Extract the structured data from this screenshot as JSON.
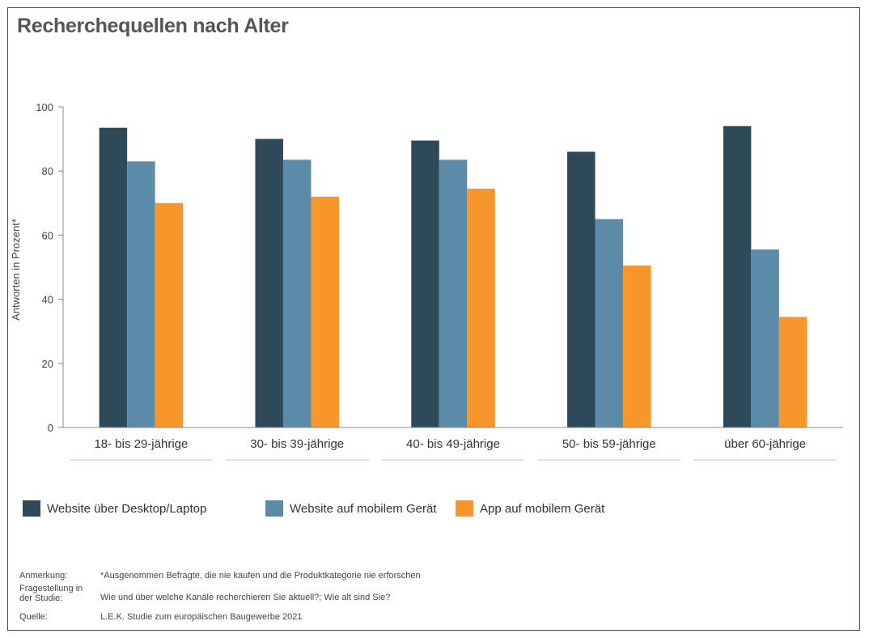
{
  "title": "Recherchequellen nach Alter",
  "chart_data": {
    "type": "bar",
    "title": "Recherchequellen nach Alter",
    "xlabel": "",
    "ylabel": "Antworten in Prozent*",
    "ylim": [
      0,
      100
    ],
    "yticks": [
      0,
      20,
      40,
      60,
      80,
      100
    ],
    "grid": false,
    "legend_position": "bottom",
    "categories": [
      "18- bis 29-jährige",
      "30- bis 39-jährige",
      "40- bis 49-jährige",
      "50- bis 59-jährige",
      "über 60-jährige"
    ],
    "series": [
      {
        "name": "Website über Desktop/Laptop",
        "color": "#2e4a59",
        "values": [
          93.5,
          90,
          89.5,
          86,
          94
        ]
      },
      {
        "name": "Website auf mobilem Gerät",
        "color": "#5b8ba8",
        "values": [
          83,
          83.5,
          83.5,
          65,
          55.5
        ]
      },
      {
        "name": "App auf mobilem Gerät",
        "color": "#f7962a",
        "values": [
          70,
          72,
          74.5,
          50.5,
          34.5
        ]
      }
    ]
  },
  "notes": [
    {
      "label": "Anmerkung:",
      "text": "*Ausgenommen Befragte, die nie kaufen und die Produktkategorie nie erforschen"
    },
    {
      "label": "Fragestellung in der Studie:",
      "text": "Wie und über welche Kanäle recherchieren Sie aktuell?; Wie alt sind Sie?"
    },
    {
      "label": "Quelle:",
      "text": "L.E.K. Studie zum europäischen Baugewerbe 2021"
    }
  ],
  "colors": {
    "axis": "#888888",
    "text": "#333333",
    "separator": "#c0c0c0"
  }
}
